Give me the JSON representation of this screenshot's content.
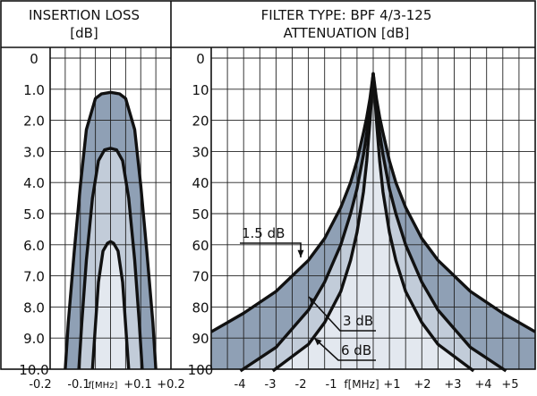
{
  "colors": {
    "band_dark": "#8fa0b5",
    "band_mid": "#c2ccd9",
    "band_light": "#e3e8ef",
    "line": "#111111"
  },
  "header": {
    "left_line1": "INSERTION LOSS",
    "left_line2": "[dB]",
    "right_line1": "FILTER TYPE: BPF 4/3-125",
    "right_line2": "ATTENUATION [dB]"
  },
  "chart_data": [
    {
      "type": "line",
      "title": "INSERTION LOSS [dB]",
      "xlabel": "f[MHz]",
      "x_ticks": [
        "-0.2",
        "-0.1",
        "f[MHz]",
        "+0.1",
        "+0.2"
      ],
      "y_ticks": [
        "0",
        "1.0",
        "2.0",
        "3.0",
        "4.0",
        "5.0",
        "6.0",
        "7.0",
        "8.0",
        "9.0",
        "10.0"
      ],
      "xlim": [
        -0.2,
        0.2
      ],
      "ylim": [
        0,
        10
      ],
      "y_inverted": true,
      "grid": true,
      "series": [
        {
          "x": [
            -0.15,
            -0.14,
            -0.12,
            -0.1,
            -0.08,
            -0.05,
            -0.03,
            0,
            0.03,
            0.05,
            0.08,
            0.1,
            0.12,
            0.14,
            0.15
          ],
          "y": [
            10,
            8.5,
            6.2,
            4.1,
            2.3,
            1.3,
            1.15,
            1.1,
            1.15,
            1.3,
            2.3,
            4.1,
            6.2,
            8.5,
            10
          ]
        },
        {
          "x": [
            -0.105,
            -0.095,
            -0.08,
            -0.06,
            -0.04,
            -0.02,
            0,
            0.02,
            0.04,
            0.06,
            0.08,
            0.095,
            0.105
          ],
          "y": [
            10,
            8.5,
            6.5,
            4.5,
            3.3,
            2.95,
            2.9,
            2.95,
            3.3,
            4.5,
            6.5,
            8.5,
            10
          ]
        },
        {
          "x": [
            -0.06,
            -0.05,
            -0.04,
            -0.025,
            -0.01,
            0,
            0.01,
            0.025,
            0.04,
            0.05,
            0.06
          ],
          "y": [
            10,
            8.6,
            7.2,
            6.2,
            5.95,
            5.9,
            5.95,
            6.2,
            7.2,
            8.6,
            10
          ]
        }
      ]
    },
    {
      "type": "line",
      "title": "ATTENUATION [dB]",
      "xlabel": "f[MHz]",
      "x_ticks": [
        "-4",
        "-3",
        "-2",
        "-1",
        "f[MHz]",
        "+1",
        "+2",
        "+3",
        "+4",
        "+5"
      ],
      "y_ticks": [
        "0",
        "10",
        "20",
        "30",
        "40",
        "50",
        "60",
        "70",
        "80",
        "90",
        "100"
      ],
      "xlim": [
        -5,
        5
      ],
      "ylim": [
        0,
        100
      ],
      "y_inverted": true,
      "grid": true,
      "series": [
        {
          "name": "1.5 dB",
          "x": [
            -5,
            -4,
            -3,
            -2,
            -1.5,
            -1,
            -0.7,
            -0.5,
            -0.3,
            -0.2,
            -0.1,
            0,
            0.1,
            0.2,
            0.3,
            0.5,
            0.7,
            1,
            1.5,
            2,
            3,
            4,
            5
          ],
          "y": [
            88,
            82,
            75,
            65,
            58,
            48,
            40,
            33,
            24,
            19,
            13,
            5,
            13,
            19,
            24,
            33,
            40,
            48,
            58,
            65,
            75,
            82,
            88
          ]
        },
        {
          "name": "3 dB",
          "x": [
            -4.1,
            -3,
            -2,
            -1.5,
            -1,
            -0.7,
            -0.5,
            -0.3,
            -0.2,
            -0.1,
            0,
            0.1,
            0.2,
            0.3,
            0.5,
            0.7,
            1,
            1.5,
            2,
            3,
            4.1
          ],
          "y": [
            101,
            93,
            81,
            72,
            60,
            50,
            42,
            31,
            24,
            16,
            5,
            16,
            24,
            31,
            42,
            50,
            60,
            72,
            81,
            93,
            101
          ]
        },
        {
          "name": "6 dB",
          "x": [
            -3.1,
            -2,
            -1.5,
            -1,
            -0.7,
            -0.5,
            -0.3,
            -0.2,
            -0.1,
            0,
            0.1,
            0.2,
            0.3,
            0.5,
            0.7,
            1,
            1.5,
            2,
            3.1
          ],
          "y": [
            101,
            92,
            85,
            75,
            65,
            56,
            43,
            33,
            20,
            5,
            20,
            33,
            43,
            56,
            65,
            75,
            85,
            92,
            101
          ]
        }
      ],
      "legend": [
        "1.5 dB",
        "3 dB",
        "6 dB"
      ]
    }
  ]
}
